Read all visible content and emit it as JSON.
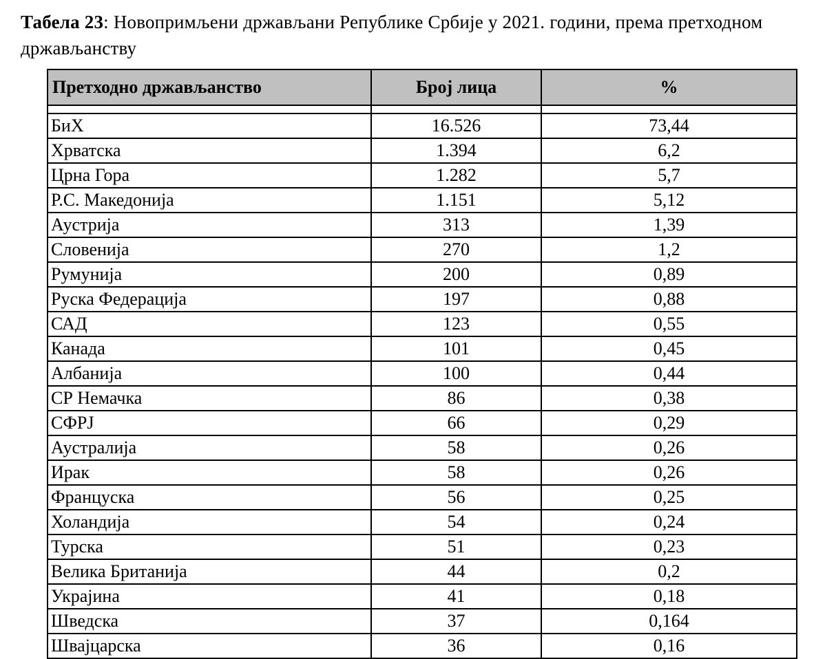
{
  "page": {
    "title_bold": "Табела 23",
    "title_rest": ": Новопримљени држављани Републике Србије у 2021. години, према претходном  држављанству"
  },
  "table": {
    "headers": [
      "Претходно  држављанство",
      "Број лица",
      "%"
    ],
    "rows": [
      [
        "БиХ",
        "16.526",
        "73,44"
      ],
      [
        "Хрватска",
        "1.394",
        "6,2"
      ],
      [
        "Црна Гора",
        "1.282",
        "5,7"
      ],
      [
        "Р.С. Македонија",
        "1.151",
        "5,12"
      ],
      [
        "Аустрија",
        "313",
        "1,39"
      ],
      [
        "Словенија",
        "270",
        "1,2"
      ],
      [
        "Румунија",
        "200",
        "0,89"
      ],
      [
        "Руска Федерација",
        "197",
        "0,88"
      ],
      [
        "САД",
        "123",
        "0,55"
      ],
      [
        "Канада",
        "101",
        "0,45"
      ],
      [
        "Албанија",
        "100",
        "0,44"
      ],
      [
        "СР Немачка",
        "86",
        "0,38"
      ],
      [
        "СФРЈ",
        "66",
        "0,29"
      ],
      [
        "Аустралија",
        "58",
        "0,26"
      ],
      [
        "Ирак",
        "58",
        "0,26"
      ],
      [
        "Француска",
        "56",
        "0,25"
      ],
      [
        "Холандија",
        "54",
        "0,24"
      ],
      [
        "Турска",
        "51",
        "0,23"
      ],
      [
        "Велика Британија",
        "44",
        "0,2"
      ],
      [
        "Украјина",
        "41",
        "0,18"
      ],
      [
        "Шведска",
        "37",
        "0,164"
      ],
      [
        "Швајцарска",
        "36",
        "0,16"
      ]
    ],
    "header_bg": "#c0c0c0",
    "border_color": "#000000"
  }
}
